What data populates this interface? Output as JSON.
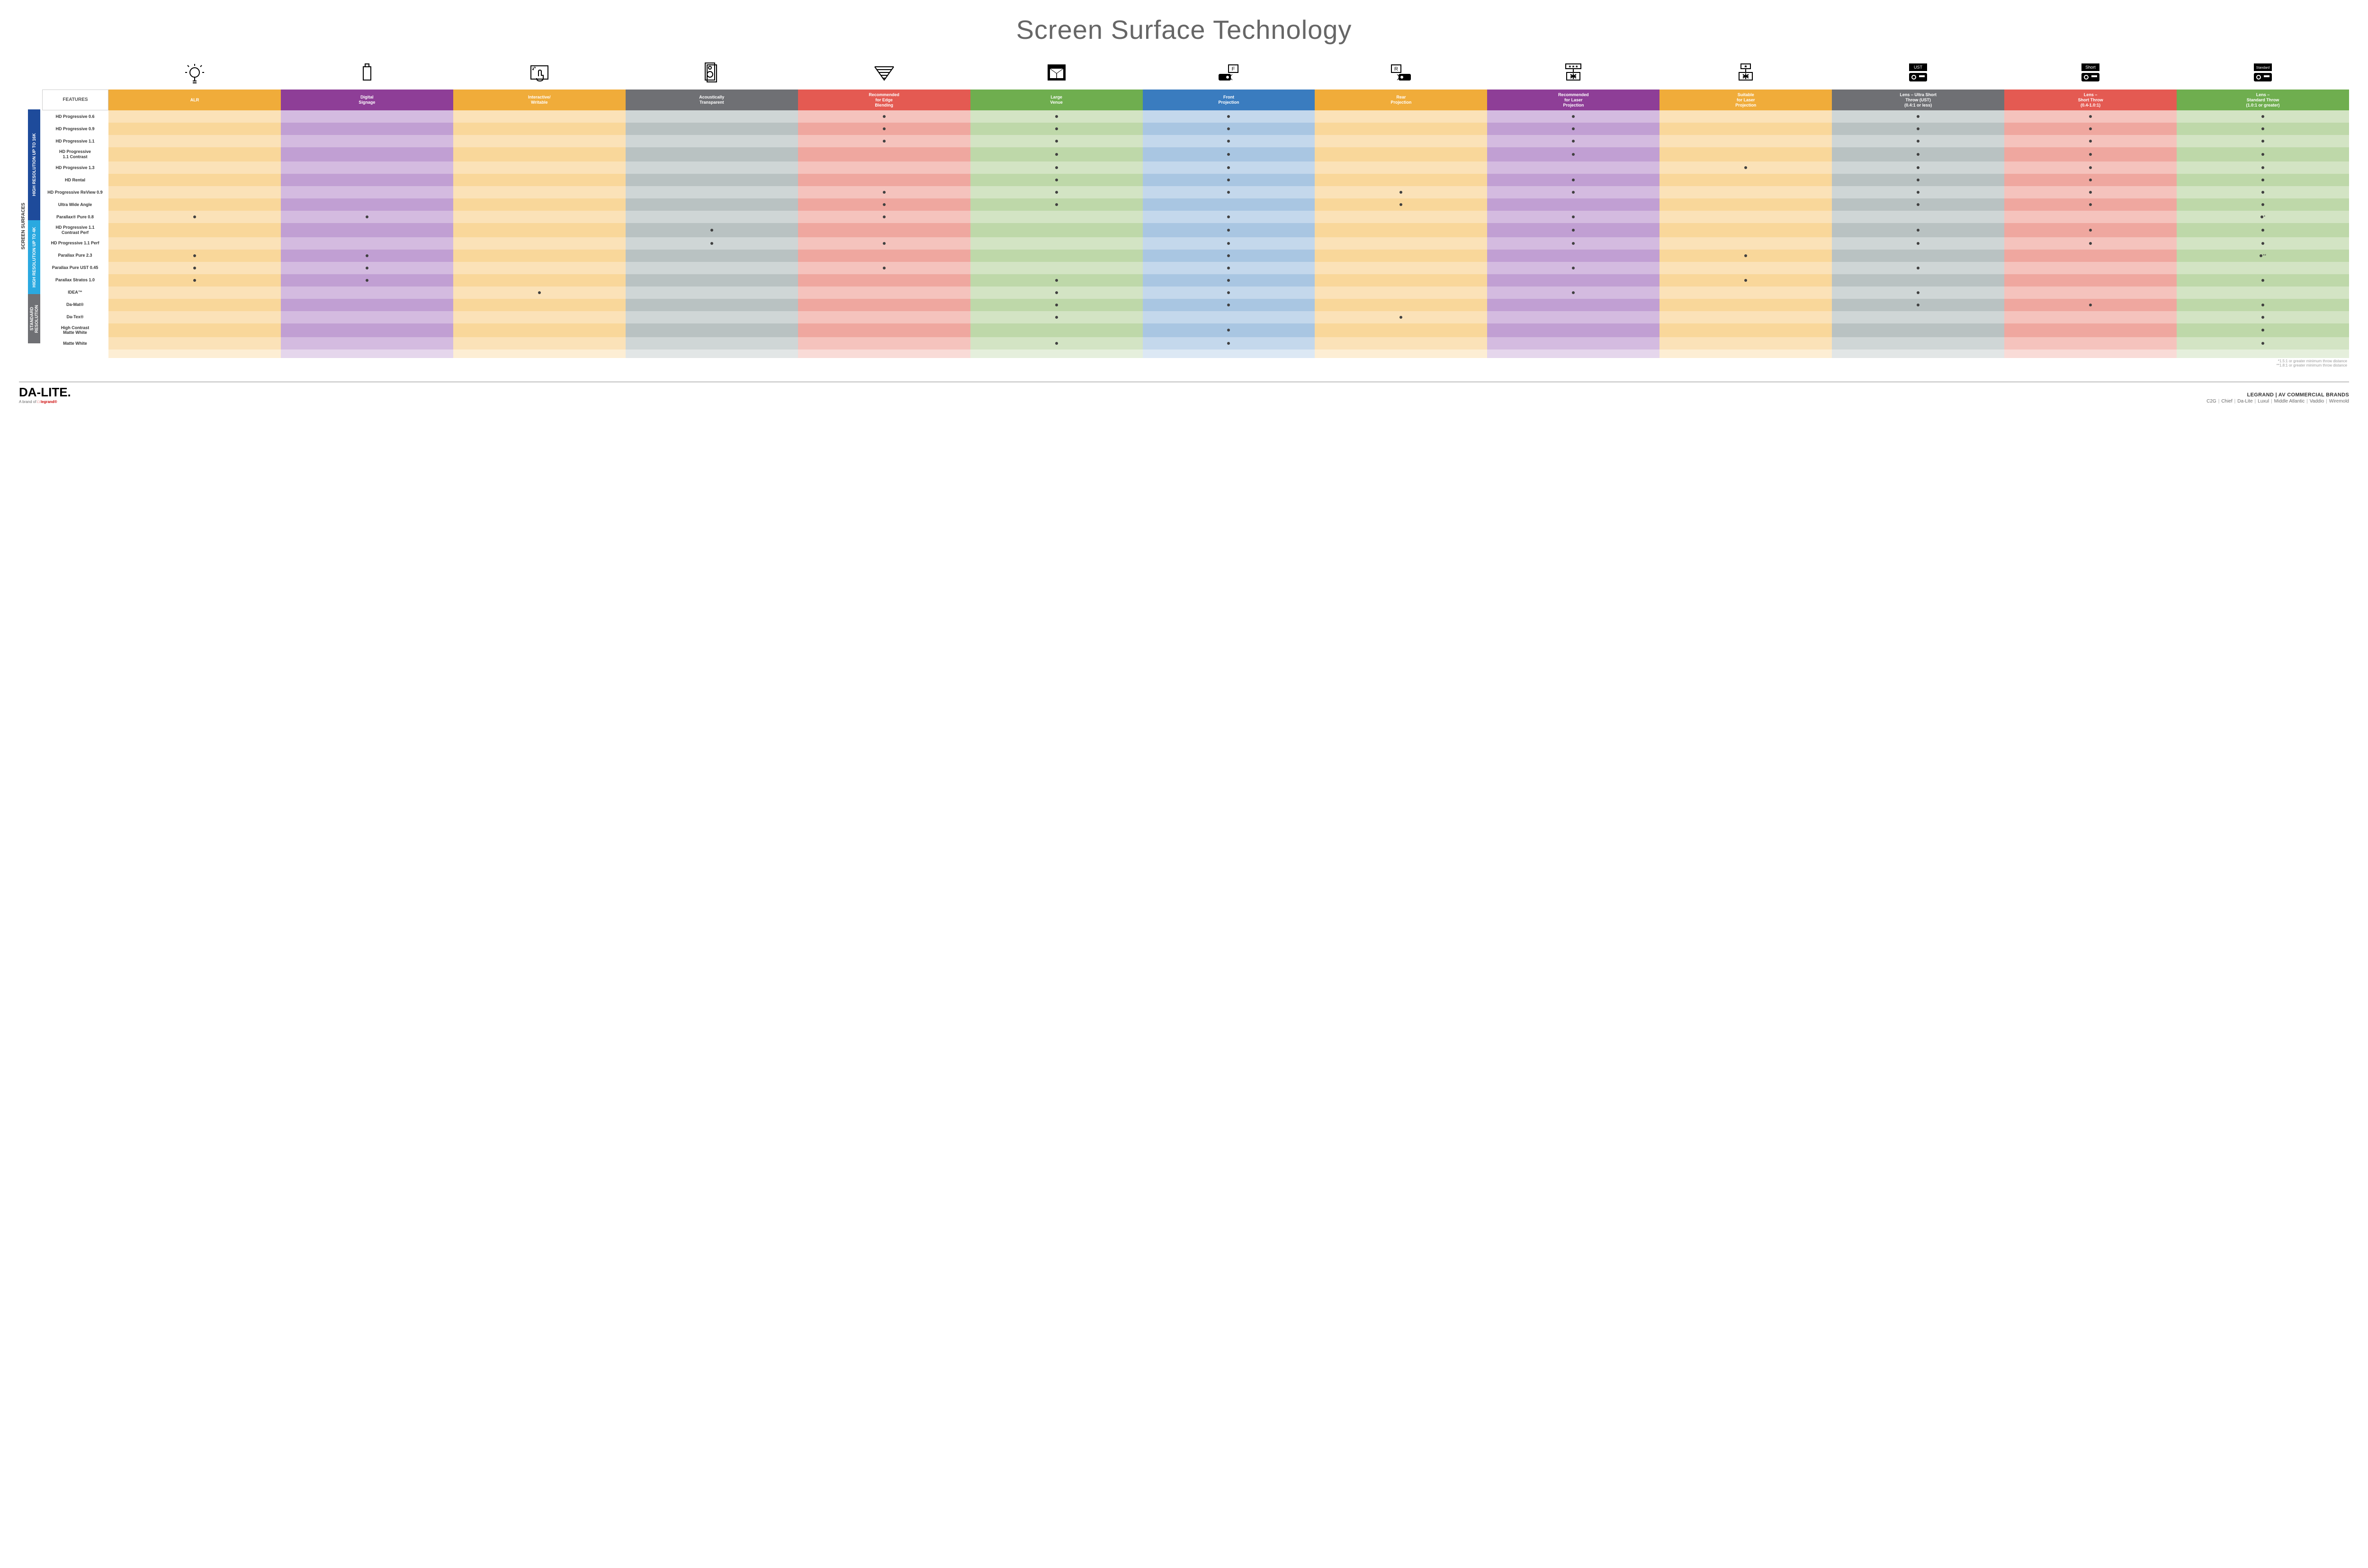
{
  "title": "Screen Surface Technology",
  "colors": {
    "header_feature_bg": "#ffffff",
    "group_16k": "#1e4b9b",
    "group_4k": "#2aa9e0",
    "group_std": "#6f7074"
  },
  "columns": [
    {
      "key": "alr",
      "label": "ALR",
      "hbg": "#f0ac3a",
      "shade": [
        "#fbe2b8",
        "#f9d79a"
      ]
    },
    {
      "key": "ds",
      "label": "Digital\nSignage",
      "hbg": "#8e3e97",
      "shade": [
        "#d4bbe0",
        "#c19fd3"
      ]
    },
    {
      "key": "iw",
      "label": "Interactive/\nWritable",
      "hbg": "#f0ac3a",
      "shade": [
        "#fbe2b8",
        "#f9d79a"
      ]
    },
    {
      "key": "at",
      "label": "Acoustically\nTransparent",
      "hbg": "#6f7074",
      "shade": [
        "#cfd6d6",
        "#b9c2c2"
      ]
    },
    {
      "key": "eb",
      "label": "Recommended\nfor Edge\nBlending",
      "hbg": "#e45a52",
      "shade": [
        "#f5c3bd",
        "#efa79f"
      ]
    },
    {
      "key": "lv",
      "label": "Large\nVenue",
      "hbg": "#6fae4f",
      "shade": [
        "#d3e4c4",
        "#bed8a9"
      ]
    },
    {
      "key": "fp",
      "label": "Front\nProjection",
      "hbg": "#3a7cbf",
      "shade": [
        "#c4d8ec",
        "#a9c6e2"
      ]
    },
    {
      "key": "rp",
      "label": "Rear\nProjection",
      "hbg": "#f0ac3a",
      "shade": [
        "#fbe2b8",
        "#f9d79a"
      ]
    },
    {
      "key": "rlp",
      "label": "Recommended\nfor Laser\nProjection",
      "hbg": "#8e3e97",
      "shade": [
        "#d4bbe0",
        "#c19fd3"
      ]
    },
    {
      "key": "slp",
      "label": "Suitable\nfor Laser\nProjection",
      "hbg": "#f0ac3a",
      "shade": [
        "#fbe2b8",
        "#f9d79a"
      ]
    },
    {
      "key": "ust",
      "label": "Lens – Ultra Short\nThrow (UST)\n(0.4:1 or less)",
      "hbg": "#6f7074",
      "shade": [
        "#cfd6d6",
        "#b9c2c2"
      ]
    },
    {
      "key": "st",
      "label": "Lens –\nShort Throw\n(0.4-1.0:1)",
      "hbg": "#e45a52",
      "shade": [
        "#f5c3bd",
        "#efa79f"
      ]
    },
    {
      "key": "std",
      "label": "Lens –\nStandard Throw\n(1.0:1 or greater)",
      "hbg": "#6fae4f",
      "shade": [
        "#d3e4c4",
        "#bed8a9"
      ]
    }
  ],
  "groups": [
    {
      "key": "16k",
      "label": "HIGH RESOLUTION UP TO 16K",
      "color": "#1e4b9b",
      "rows": [
        {
          "label": "HD Progressive 0.6",
          "dots": {
            "eb": "•",
            "lv": "•",
            "fp": "•",
            "rlp": "•",
            "ust": "•",
            "st": "•",
            "std": "•"
          }
        },
        {
          "label": "HD Progressive 0.9",
          "dots": {
            "eb": "•",
            "lv": "•",
            "fp": "•",
            "rlp": "•",
            "ust": "•",
            "st": "•",
            "std": "•"
          }
        },
        {
          "label": "HD Progressive 1.1",
          "dots": {
            "eb": "•",
            "lv": "•",
            "fp": "•",
            "rlp": "•",
            "ust": "•",
            "st": "•",
            "std": "•"
          }
        },
        {
          "label": "HD Progressive\n1.1 Contrast",
          "dots": {
            "lv": "•",
            "fp": "•",
            "rlp": "•",
            "ust": "•",
            "st": "•",
            "std": "•"
          }
        },
        {
          "label": "HD Progressive 1.3",
          "dots": {
            "lv": "•",
            "fp": "•",
            "slp": "•",
            "ust": "•",
            "st": "•",
            "std": "•"
          }
        },
        {
          "label": "HD Rental",
          "dots": {
            "lv": "•",
            "fp": "•",
            "rlp": "•",
            "ust": "•",
            "st": "•",
            "std": "•"
          }
        },
        {
          "label": "HD Progressive ReView 0.9",
          "dots": {
            "eb": "•",
            "lv": "•",
            "fp": "•",
            "rp": "•",
            "rlp": "•",
            "ust": "•",
            "st": "•",
            "std": "•"
          }
        },
        {
          "label": "Ultra Wide Angle",
          "dots": {
            "eb": "•",
            "lv": "•",
            "rp": "•",
            "ust": "•",
            "st": "•",
            "std": "•"
          }
        },
        {
          "label": "Parallax® Pure 0.8",
          "dots": {
            "alr": "•",
            "ds": "•",
            "eb": "•",
            "fp": "•",
            "rlp": "•",
            "std": "•*"
          }
        }
      ]
    },
    {
      "key": "4k",
      "label": "HIGH RESOLUTION UP TO 4K",
      "color": "#2aa9e0",
      "rows": [
        {
          "label": "HD Progressive 1.1\nContrast Perf",
          "dots": {
            "at": "•",
            "fp": "•",
            "rlp": "•",
            "ust": "•",
            "st": "•",
            "std": "•"
          }
        },
        {
          "label": "HD Progressive 1.1 Perf",
          "dots": {
            "at": "•",
            "eb": "•",
            "fp": "•",
            "rlp": "•",
            "ust": "•",
            "st": "•",
            "std": "•"
          }
        },
        {
          "label": "Parallax Pure 2.3",
          "dots": {
            "alr": "•",
            "ds": "•",
            "fp": "•",
            "slp": "•",
            "std": "•**"
          }
        },
        {
          "label": "Parallax Pure UST 0.45",
          "dots": {
            "alr": "•",
            "ds": "•",
            "eb": "•",
            "fp": "•",
            "rlp": "•",
            "ust": "•"
          }
        },
        {
          "label": "Parallax Stratos 1.0",
          "dots": {
            "alr": "•",
            "ds": "•",
            "lv": "•",
            "fp": "•",
            "slp": "•",
            "std": "•"
          }
        },
        {
          "label": "IDEA™",
          "dots": {
            "iw": "•",
            "lv": "•",
            "fp": "•",
            "rlp": "•",
            "ust": "•"
          }
        }
      ]
    },
    {
      "key": "std",
      "label": "STANDARD\nRESOLUTION",
      "color": "#6f7074",
      "rows": [
        {
          "label": "Da-Mat®",
          "dots": {
            "lv": "•",
            "fp": "•",
            "ust": "•",
            "st": "•",
            "std": "•"
          }
        },
        {
          "label": "Da-Tex®",
          "dots": {
            "lv": "•",
            "rp": "•",
            "std": "•"
          }
        },
        {
          "label": "High Contrast\nMatte White",
          "dots": {
            "fp": "•",
            "std": "•"
          }
        },
        {
          "label": "Matte White",
          "dots": {
            "lv": "•",
            "fp": "•",
            "std": "•"
          }
        }
      ]
    }
  ],
  "side_label": "SCREEN SURFACES",
  "features_label": "FEATURES",
  "footnotes": [
    "*1.5:1 or greater minimum throw distance",
    "**1.8:1 or greater minimum throw distance"
  ],
  "footer": {
    "brand": "DA-LITE.",
    "brand_sub_pre": "A brand of ",
    "brand_sub_leg": "legrand",
    "right_heading": "LEGRAND | AV COMMERCIAL BRANDS",
    "brands": [
      "C2G",
      "Chief",
      "Da-Lite",
      "Luxul",
      "Middle Atlantic",
      "Vaddio",
      "Wiremold"
    ]
  },
  "icons": {
    "alr": "bulb",
    "ds": "signage",
    "iw": "touch",
    "at": "speaker",
    "eb": "blend",
    "lv": "venue",
    "fp": "front-proj",
    "rp": "rear-proj",
    "rlp": "laser-rec",
    "slp": "laser-suit",
    "ust": "proj-ust",
    "st": "proj-short",
    "std": "proj-std"
  }
}
